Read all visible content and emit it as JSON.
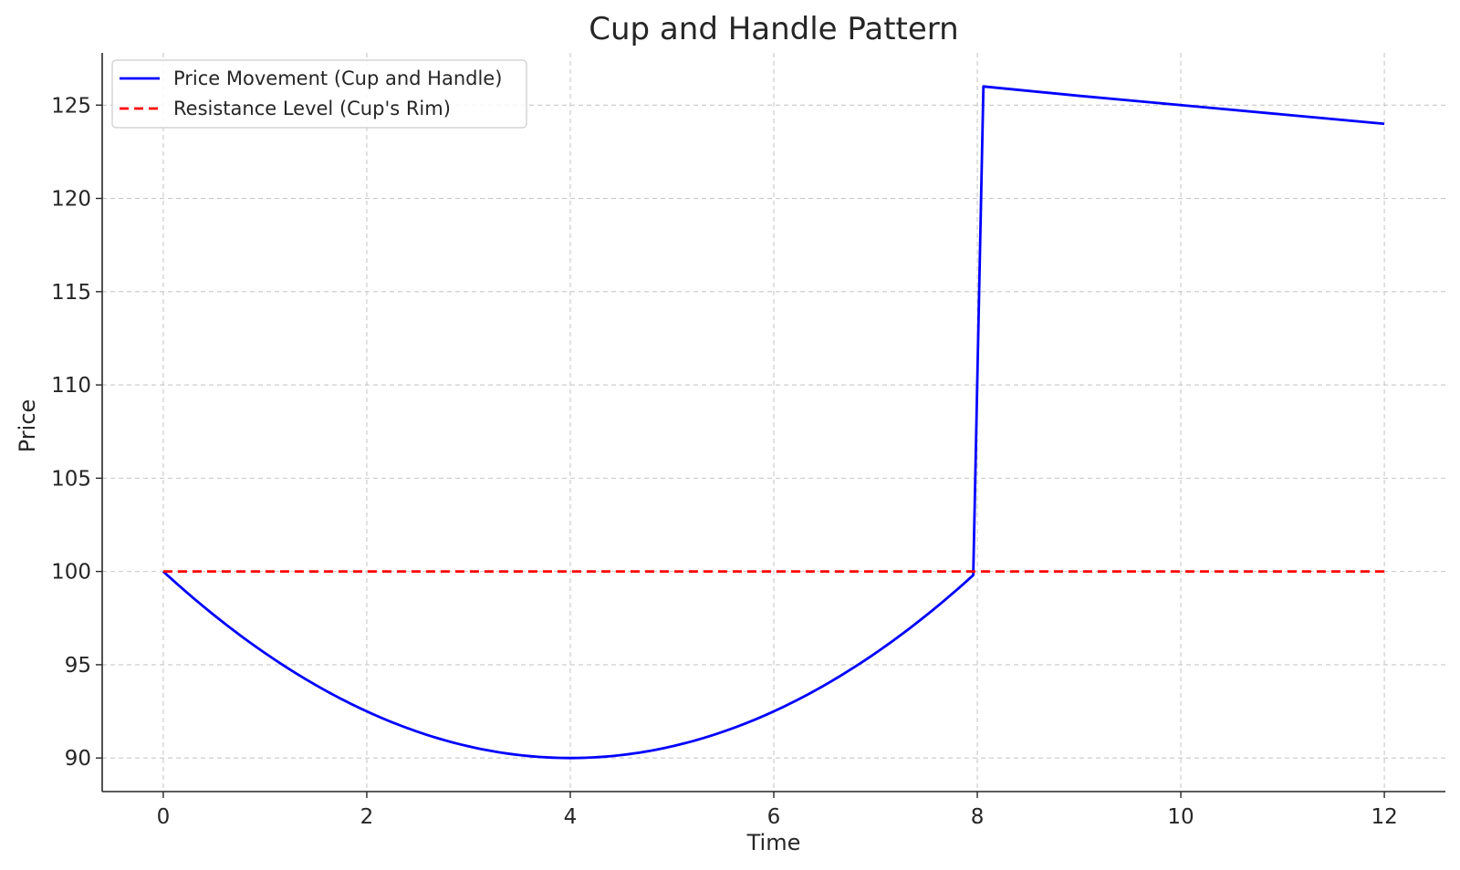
{
  "chart_data": {
    "type": "line",
    "title": "Cup and Handle Pattern",
    "xlabel": "Time",
    "ylabel": "Price",
    "xlim": [
      -0.6,
      12.6
    ],
    "ylim": [
      88.2,
      127.8
    ],
    "xticks": [
      0,
      2,
      4,
      6,
      8,
      10,
      12
    ],
    "yticks": [
      90,
      95,
      100,
      105,
      110,
      115,
      120,
      125
    ],
    "grid": true,
    "legend_position": "top-left",
    "series": [
      {
        "name": "Price Movement (Cup and Handle)",
        "color": "#0000ff",
        "style": "solid",
        "x": [
          0,
          0.5,
          1,
          1.5,
          2,
          2.5,
          3,
          3.5,
          4,
          4.5,
          5,
          5.5,
          6,
          6.5,
          7,
          7.5,
          7.96,
          8.06,
          9,
          10,
          11,
          12
        ],
        "y": [
          100,
          98.2,
          96.6,
          95.0,
          93.8,
          92.2,
          91.1,
          90.3,
          90.0,
          90.3,
          91.1,
          92.2,
          93.8,
          95.0,
          96.6,
          98.2,
          100,
          126,
          125.5,
          125,
          124.5,
          124
        ]
      },
      {
        "name": "Resistance Level (Cup's Rim)",
        "color": "#ff0000",
        "style": "dashed",
        "x": [
          0,
          12
        ],
        "y": [
          100,
          100
        ]
      }
    ]
  }
}
